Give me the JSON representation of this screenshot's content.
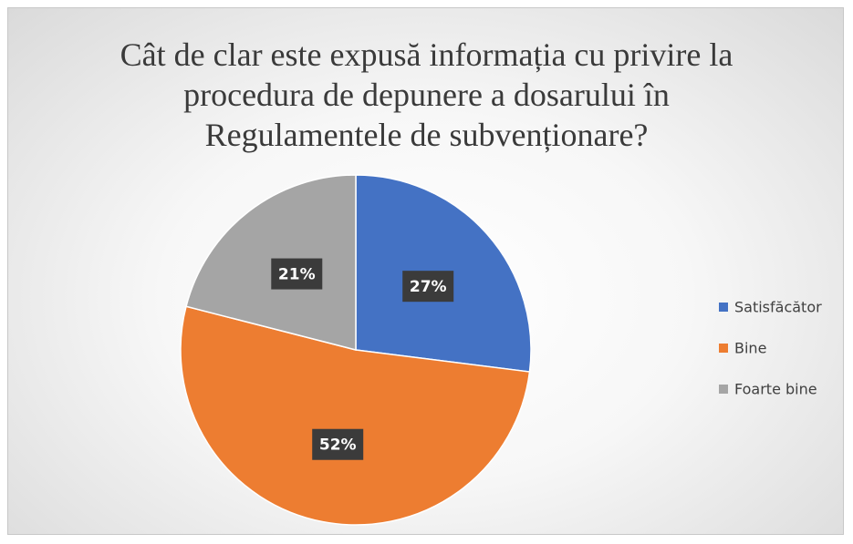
{
  "chart_data": {
    "type": "pie",
    "title": "Cât de clar este expusă informația cu privire la procedura de depunere a dosarului în Regulamentele de subvenționare?",
    "categories": [
      "Satisfăcător",
      "Bine",
      "Foarte bine"
    ],
    "values": [
      27,
      52,
      21
    ],
    "value_labels": [
      "27%",
      "52%",
      "21%"
    ],
    "colors": [
      "#4472c4",
      "#ed7d31",
      "#a5a5a5"
    ],
    "legend": "right"
  }
}
